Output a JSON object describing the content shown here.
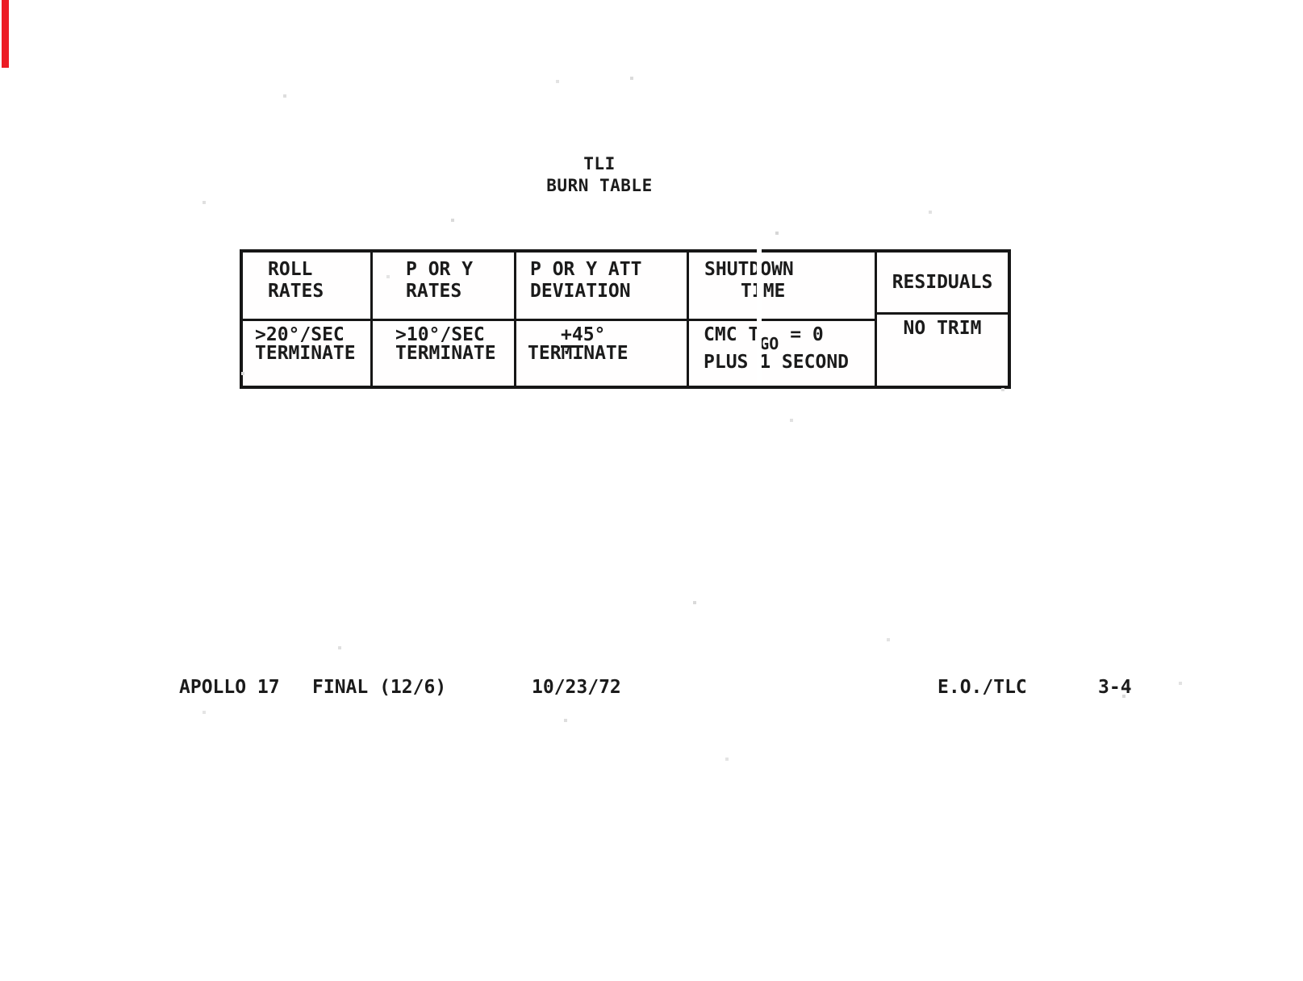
{
  "document": {
    "title_line1": "TLI",
    "title_line2": "BURN TABLE"
  },
  "table": {
    "headers": [
      {
        "line1": "ROLL",
        "line2": "RATES"
      },
      {
        "line1": "P OR Y",
        "line2": "RATES"
      },
      {
        "line1": "P OR Y ATT",
        "line2": "DEVIATION"
      },
      {
        "line1": "SHUTDOWN",
        "line2": "TIME"
      },
      {
        "line1": "RESIDUALS",
        "line2": ""
      }
    ],
    "values": {
      "roll": {
        "line1": ">20°/SEC",
        "line2": "TERMINATE"
      },
      "pory": {
        "line1": ">10°/SEC",
        "line2": "TERMINATE"
      },
      "att": {
        "bar": "+4",
        "rest": "5°",
        "line2": "TERMINATE"
      },
      "shutdown": {
        "pre": "CMC T",
        "sub": "GO",
        "post": " = 0",
        "line2": "PLUS 1 SECOND"
      },
      "residuals": {
        "line1": "NO TRIM"
      }
    }
  },
  "footer": {
    "mission": "APOLLO 17",
    "revision": "FINAL (12/6)",
    "date": "10/23/72",
    "section": "E.O./TLC",
    "page": "3-4"
  },
  "colors": {
    "edge_tab_red": "#ec1c24",
    "ink": "#1b1b1b"
  }
}
